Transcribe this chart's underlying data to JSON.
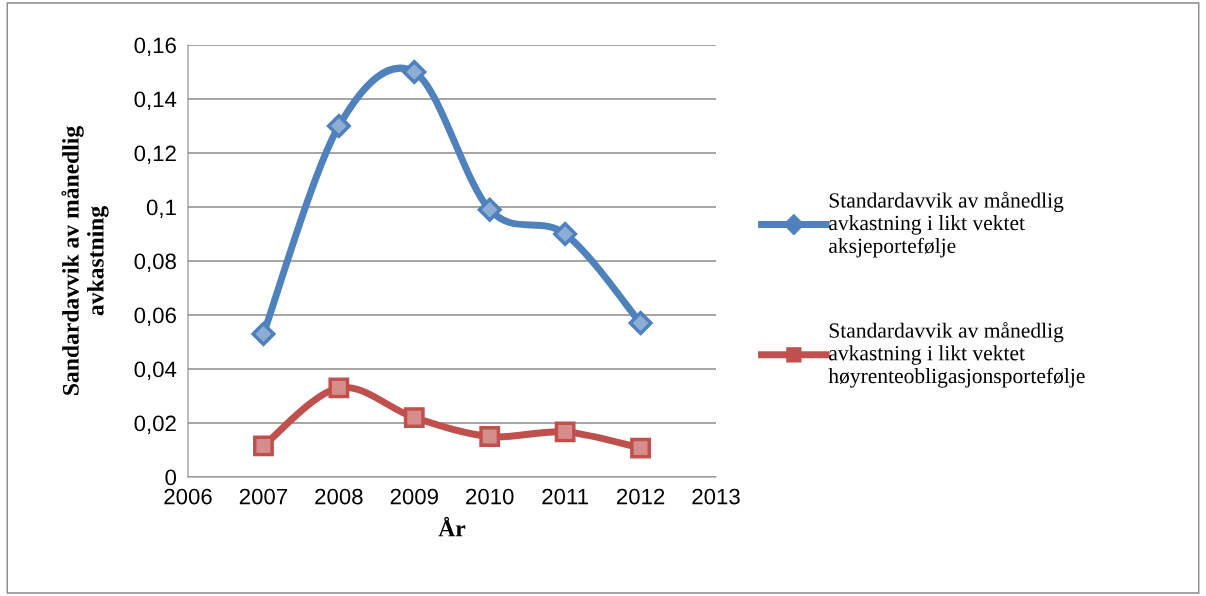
{
  "chart_data": {
    "type": "line",
    "xlabel": "År",
    "ylabel": "Sandardavvik av månedlig\navkastning",
    "x": [
      2007,
      2008,
      2009,
      2010,
      2011,
      2012
    ],
    "series": [
      {
        "name": "Standardavvik av månedlig\navkastning i likt vektet\naksjeportefølje",
        "color": "#4f81bd",
        "marker": "diamond",
        "values": [
          0.053,
          0.13,
          0.15,
          0.099,
          0.09,
          0.057
        ]
      },
      {
        "name": "Standardavvik av månedlig\navkastning i likt vektet\nhøyrenteobligasjonsportefølje",
        "color": "#c0504d",
        "marker": "square",
        "values": [
          0.0115,
          0.033,
          0.022,
          0.015,
          0.0167,
          0.0107
        ]
      }
    ],
    "xlim": [
      2006,
      2013
    ],
    "xticks": [
      2006,
      2007,
      2008,
      2009,
      2010,
      2011,
      2012,
      2013
    ],
    "ylim": [
      0,
      0.16
    ],
    "yticks": [
      {
        "value": 0,
        "label": "0"
      },
      {
        "value": 0.02,
        "label": "0,02"
      },
      {
        "value": 0.04,
        "label": "0,04"
      },
      {
        "value": 0.06,
        "label": "0,06"
      },
      {
        "value": 0.08,
        "label": "0,08"
      },
      {
        "value": 0.1,
        "label": "0,1"
      },
      {
        "value": 0.12,
        "label": "0,12"
      },
      {
        "value": 0.14,
        "label": "0,14"
      },
      {
        "value": 0.16,
        "label": "0,16"
      }
    ],
    "grid": "y",
    "legend": "right"
  }
}
